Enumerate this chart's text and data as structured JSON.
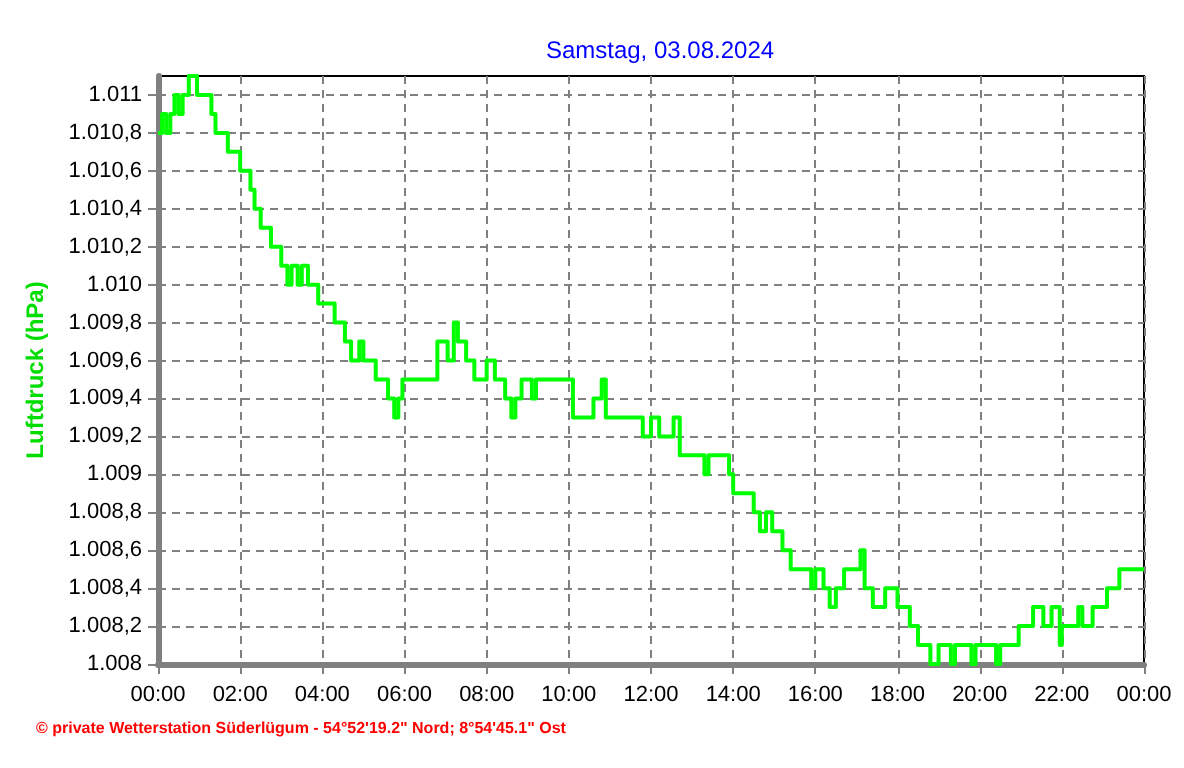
{
  "chart_data": {
    "type": "step",
    "title": "Samstag, 03.08.2024",
    "ylabel": "Luftdruck (hPa)",
    "annotations": [
      "© private Wetterstation Süderlügum - 54°52'19.2\" Nord; 8°54'45.1\" Ost"
    ],
    "x": [
      0,
      0.1,
      0.2,
      0.3,
      0.4,
      0.5,
      0.6,
      0.75,
      0.95,
      1.3,
      1.4,
      1.7,
      2.0,
      2.25,
      2.35,
      2.5,
      2.75,
      3.0,
      3.15,
      3.25,
      3.4,
      3.5,
      3.65,
      3.9,
      4.3,
      4.55,
      4.7,
      4.9,
      5.0,
      5.3,
      5.6,
      5.75,
      5.85,
      5.95,
      6.8,
      7.05,
      7.2,
      7.3,
      7.5,
      7.7,
      8.0,
      8.2,
      8.45,
      8.6,
      8.7,
      8.85,
      9.1,
      9.2,
      10.1,
      10.6,
      10.8,
      10.9,
      11.8,
      12.0,
      12.2,
      12.55,
      12.7,
      13.3,
      13.4,
      13.9,
      14.0,
      14.5,
      14.65,
      14.8,
      14.95,
      15.2,
      15.4,
      15.9,
      16.0,
      16.2,
      16.35,
      16.5,
      16.7,
      17.1,
      17.2,
      17.4,
      17.7,
      18.0,
      18.3,
      18.5,
      18.8,
      19.0,
      19.3,
      19.4,
      19.8,
      19.9,
      20.4,
      20.5,
      20.95,
      21.3,
      21.55,
      21.75,
      21.95,
      22.0,
      22.4,
      22.5,
      22.75,
      23.1,
      23.4,
      24
    ],
    "series": [
      {
        "color": "#00ff00",
        "values": [
          1010.8,
          1010.9,
          1010.8,
          1010.9,
          1011.0,
          1010.9,
          1011.0,
          1011.1,
          1011.0,
          1010.9,
          1010.8,
          1010.7,
          1010.6,
          1010.5,
          1010.4,
          1010.3,
          1010.2,
          1010.1,
          1010.0,
          1010.1,
          1010.0,
          1010.1,
          1010.0,
          1009.9,
          1009.8,
          1009.7,
          1009.6,
          1009.7,
          1009.6,
          1009.5,
          1009.4,
          1009.3,
          1009.4,
          1009.5,
          1009.7,
          1009.6,
          1009.8,
          1009.7,
          1009.6,
          1009.5,
          1009.6,
          1009.5,
          1009.4,
          1009.3,
          1009.4,
          1009.5,
          1009.4,
          1009.5,
          1009.3,
          1009.4,
          1009.5,
          1009.3,
          1009.2,
          1009.3,
          1009.2,
          1009.3,
          1009.1,
          1009.0,
          1009.1,
          1009.0,
          1008.9,
          1008.8,
          1008.7,
          1008.8,
          1008.7,
          1008.6,
          1008.5,
          1008.4,
          1008.5,
          1008.4,
          1008.3,
          1008.4,
          1008.5,
          1008.6,
          1008.4,
          1008.3,
          1008.4,
          1008.3,
          1008.2,
          1008.1,
          1008.0,
          1008.1,
          1008.0,
          1008.1,
          1008.0,
          1008.1,
          1008.0,
          1008.1,
          1008.2,
          1008.3,
          1008.2,
          1008.3,
          1008.1,
          1008.2,
          1008.3,
          1008.2,
          1008.3,
          1008.4,
          1008.5,
          1008.5
        ]
      }
    ],
    "xlim": [
      0,
      24
    ],
    "xticks": [
      {
        "value": 0,
        "label": "00:00"
      },
      {
        "value": 2,
        "label": "02:00"
      },
      {
        "value": 4,
        "label": "04:00"
      },
      {
        "value": 6,
        "label": "06:00"
      },
      {
        "value": 8,
        "label": "08:00"
      },
      {
        "value": 10,
        "label": "10:00"
      },
      {
        "value": 12,
        "label": "12:00"
      },
      {
        "value": 14,
        "label": "14:00"
      },
      {
        "value": 16,
        "label": "16:00"
      },
      {
        "value": 18,
        "label": "18:00"
      },
      {
        "value": 20,
        "label": "20:00"
      },
      {
        "value": 22,
        "label": "22:00"
      },
      {
        "value": 24,
        "label": "00:00"
      }
    ],
    "ylim": [
      1008,
      1011.1
    ],
    "yticks": [
      {
        "value": 1008,
        "label": "1.008"
      },
      {
        "value": 1008.2,
        "label": "1.008,2"
      },
      {
        "value": 1008.4,
        "label": "1.008,4"
      },
      {
        "value": 1008.6,
        "label": "1.008,6"
      },
      {
        "value": 1008.8,
        "label": "1.008,8"
      },
      {
        "value": 1009,
        "label": "1.009"
      },
      {
        "value": 1009.2,
        "label": "1.009,2"
      },
      {
        "value": 1009.4,
        "label": "1.009,4"
      },
      {
        "value": 1009.6,
        "label": "1.009,6"
      },
      {
        "value": 1009.8,
        "label": "1.009,8"
      },
      {
        "value": 1010,
        "label": "1.010"
      },
      {
        "value": 1010.2,
        "label": "1.010,2"
      },
      {
        "value": 1010.4,
        "label": "1.010,4"
      },
      {
        "value": 1010.6,
        "label": "1.010,6"
      },
      {
        "value": 1010.8,
        "label": "1.010,8"
      },
      {
        "value": 1011,
        "label": "1.011"
      }
    ],
    "grid": true,
    "marker": "none",
    "line_style": "solid"
  }
}
